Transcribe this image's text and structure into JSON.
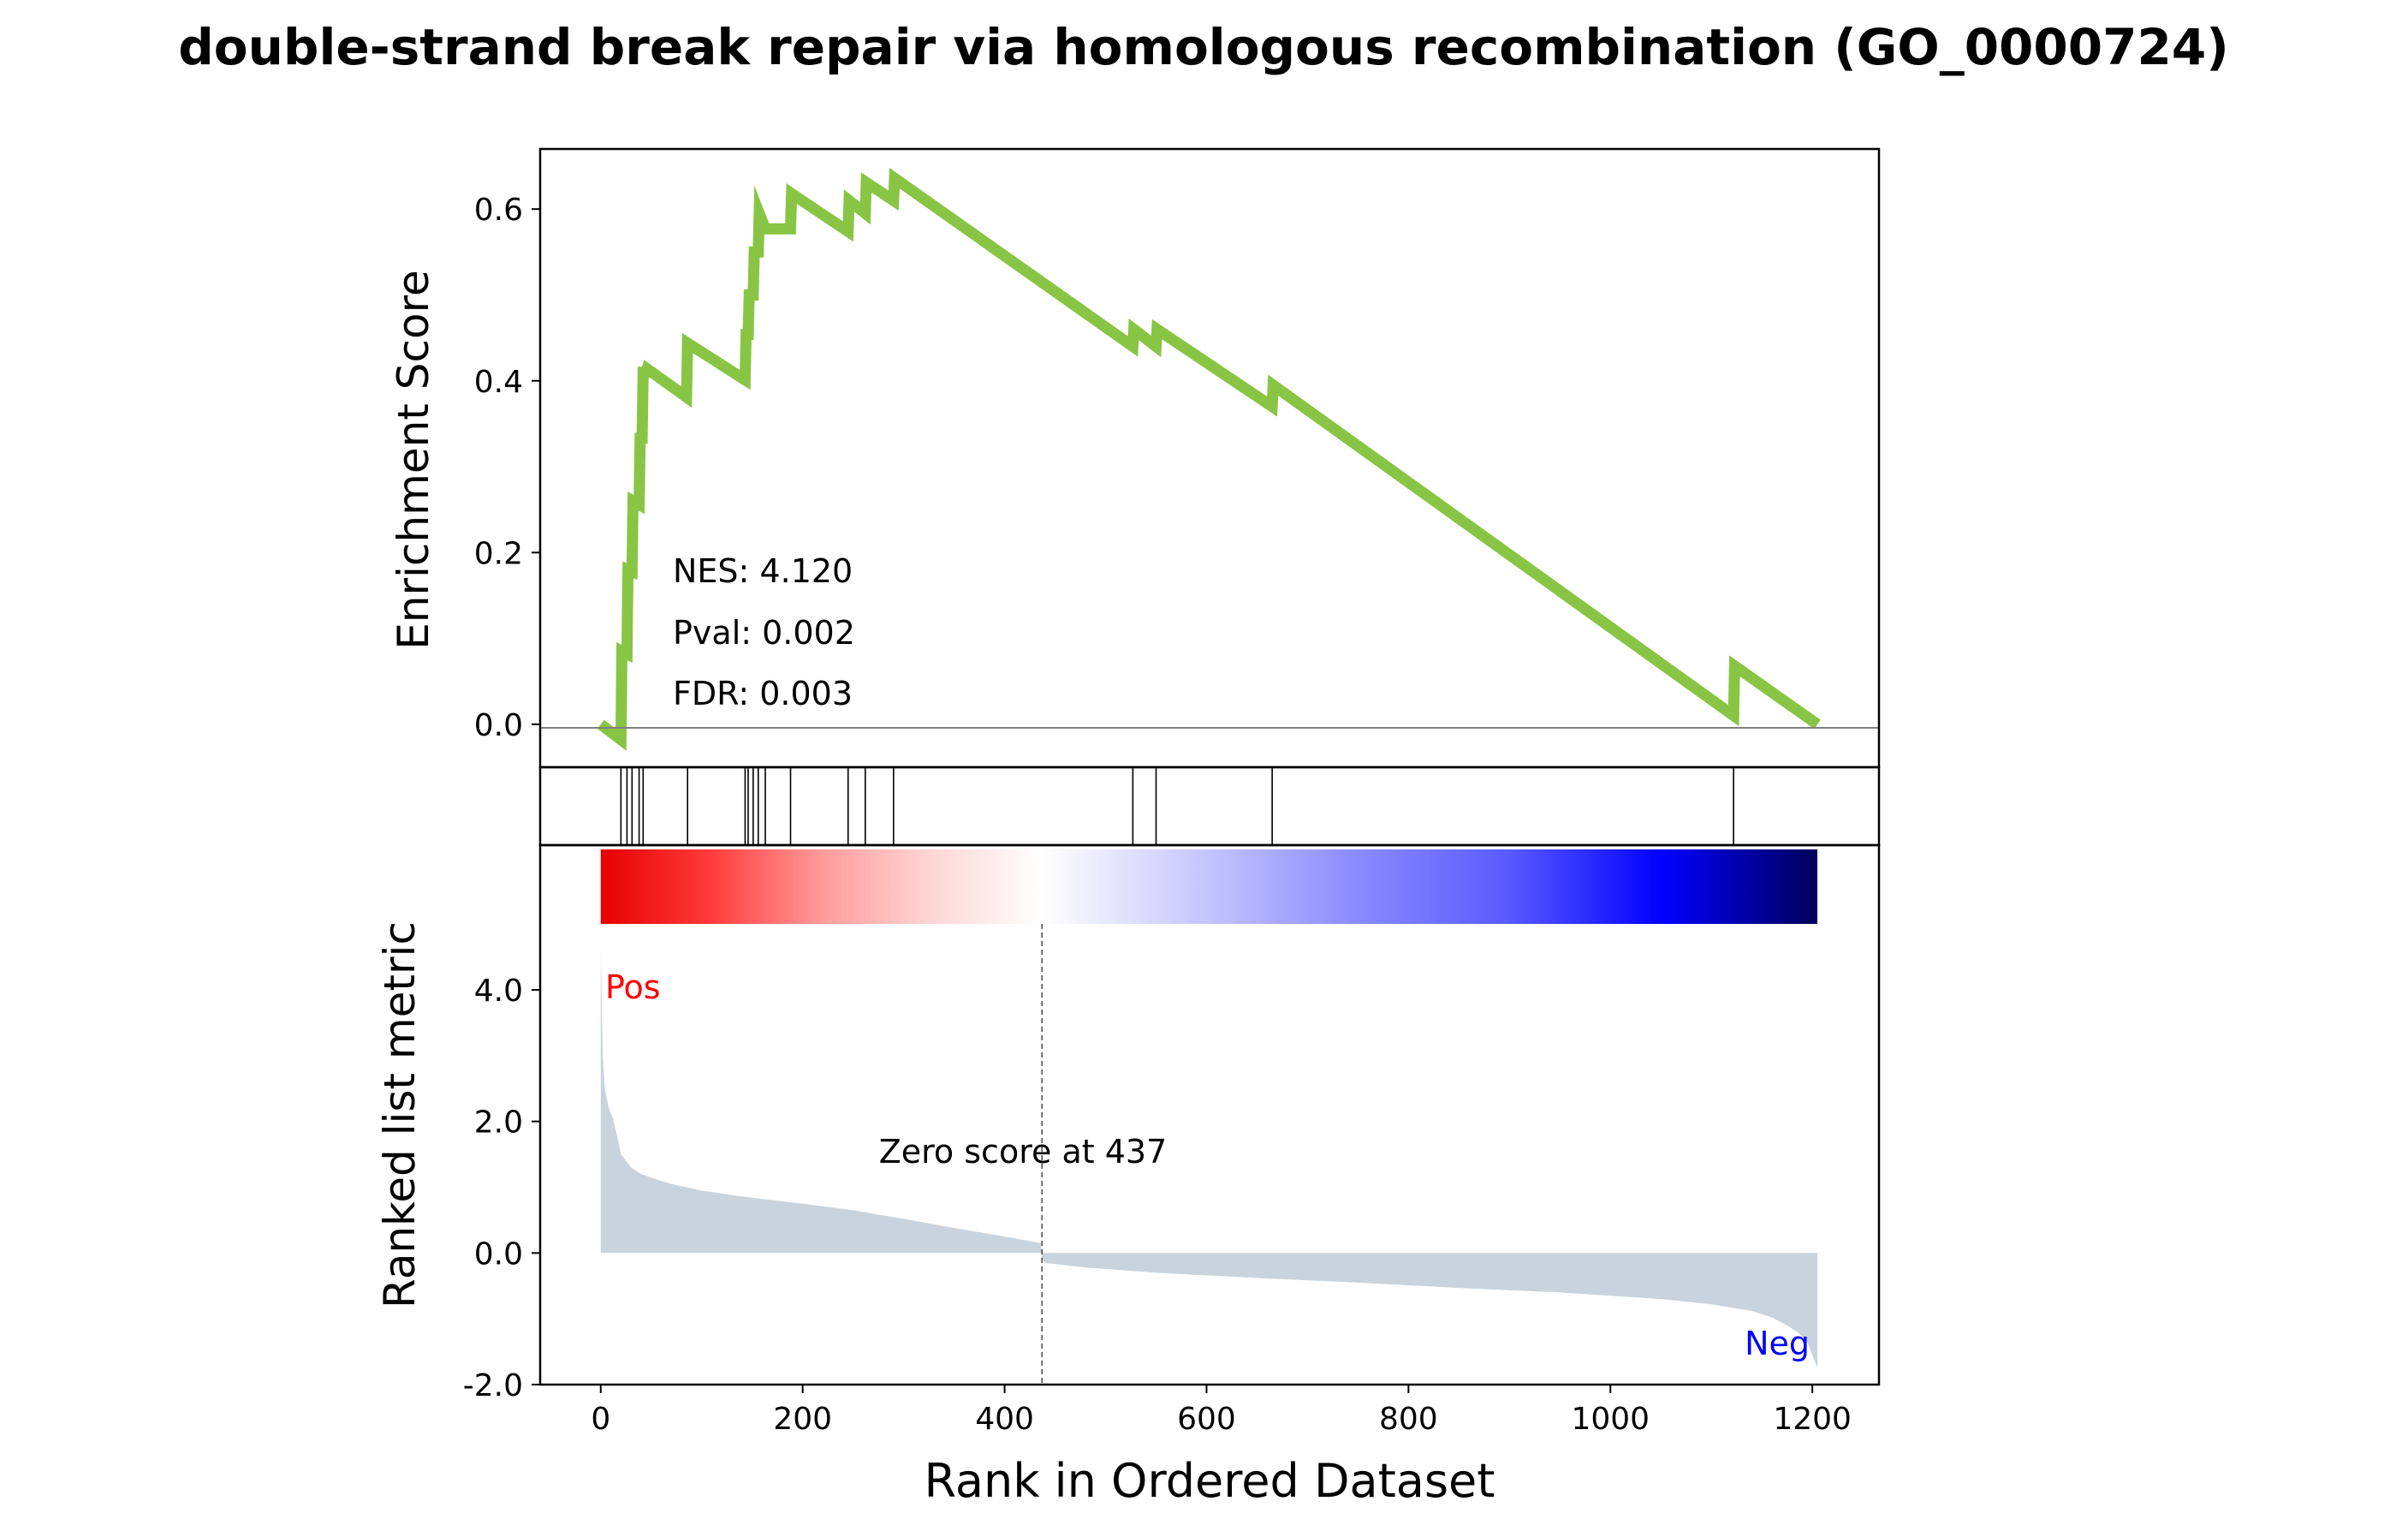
{
  "title": "double-strand break repair via homologous recombination (GO_0000724)",
  "colors": {
    "es_line": "#88c544",
    "hit_line": "#000000",
    "metric_fill": "#c9d3dd",
    "zero_line": "#808080",
    "pos_label": "#ff0000",
    "neg_label": "#0000ff",
    "axis": "#000000",
    "gradient_stops": [
      "#e60000",
      "#ff3b3b",
      "#ff9a9a",
      "#ffd6d6",
      "#ffffff",
      "#c8c8ff",
      "#8c8cff",
      "#5a5aff",
      "#0000ff",
      "#00005a"
    ]
  },
  "chart_data": [
    {
      "id": "enrichment",
      "type": "line",
      "ylabel": "Enrichment Score",
      "ylim": [
        -0.05,
        0.67
      ],
      "yticks": [
        0.0,
        0.2,
        0.4,
        0.6
      ],
      "ytick_labels": [
        "0.0",
        "0.2",
        "0.4",
        "0.6"
      ],
      "xlim": [
        -60,
        1266
      ],
      "annotations": [
        "NES: 4.120",
        "Pval: 0.002",
        "FDR: 0.003"
      ],
      "series": [
        {
          "x": [
            0,
            20,
            21,
            26,
            27,
            31,
            32,
            38,
            39,
            41,
            42,
            45,
            46,
            85,
            86,
            143,
            144,
            146,
            147,
            151,
            152,
            156,
            157,
            163,
            164,
            188,
            189,
            245,
            246,
            262,
            263,
            290,
            291,
            527,
            528,
            550,
            551,
            665,
            666,
            1122,
            1123,
            1205
          ],
          "y": [
            0.0,
            -0.018,
            0.085,
            0.082,
            0.18,
            0.178,
            0.26,
            0.256,
            0.333,
            0.333,
            0.41,
            0.41,
            0.414,
            0.381,
            0.444,
            0.401,
            0.454,
            0.454,
            0.5,
            0.5,
            0.55,
            0.55,
            0.595,
            0.577,
            0.577,
            0.577,
            0.618,
            0.574,
            0.61,
            0.595,
            0.631,
            0.61,
            0.636,
            0.44,
            0.46,
            0.44,
            0.46,
            0.37,
            0.395,
            0.01,
            0.068,
            0.0
          ]
        }
      ]
    },
    {
      "id": "hits",
      "type": "scatter",
      "description_marks": "vertical hit lines",
      "xlim": [
        -60,
        1266
      ],
      "hit_positions": [
        20,
        26,
        31,
        38,
        42,
        86,
        143,
        146,
        151,
        156,
        163,
        188,
        245,
        262,
        290,
        527,
        550,
        665,
        1122
      ]
    },
    {
      "id": "ranked_metric",
      "type": "area",
      "ylabel": "Ranked list metric",
      "xlabel": "Rank in Ordered Dataset",
      "xlim": [
        -60,
        1266
      ],
      "ylim": [
        -2.0,
        6.2
      ],
      "yticks": [
        -2.0,
        0.0,
        2.0,
        4.0
      ],
      "ytick_labels": [
        "-2.0",
        "0.0",
        "2.0",
        "4.0"
      ],
      "xticks": [
        0,
        200,
        400,
        600,
        800,
        1000,
        1200
      ],
      "xtick_labels": [
        "0",
        "200",
        "400",
        "600",
        "800",
        "1000",
        "1200"
      ],
      "zero_cross": 437,
      "zero_cross_label": "Zero score at 437",
      "pos_label": "Pos",
      "neg_label": "Neg",
      "series": [
        {
          "x": [
            0,
            2,
            4,
            8,
            12,
            16,
            20,
            30,
            40,
            55,
            70,
            100,
            130,
            160,
            200,
            250,
            300,
            350,
            400,
            436,
            437,
            440,
            480,
            550,
            650,
            750,
            850,
            950,
            1050,
            1100,
            1140,
            1160,
            1175,
            1185,
            1195,
            1200,
            1205
          ],
          "y": [
            4.6,
            3.0,
            2.5,
            2.2,
            2.05,
            1.8,
            1.5,
            1.3,
            1.2,
            1.12,
            1.05,
            0.95,
            0.88,
            0.82,
            0.75,
            0.65,
            0.52,
            0.38,
            0.25,
            0.15,
            -0.1,
            -0.15,
            -0.22,
            -0.3,
            -0.38,
            -0.45,
            -0.53,
            -0.6,
            -0.7,
            -0.78,
            -0.88,
            -0.98,
            -1.1,
            -1.2,
            -1.35,
            -1.55,
            -1.75
          ]
        }
      ]
    }
  ]
}
